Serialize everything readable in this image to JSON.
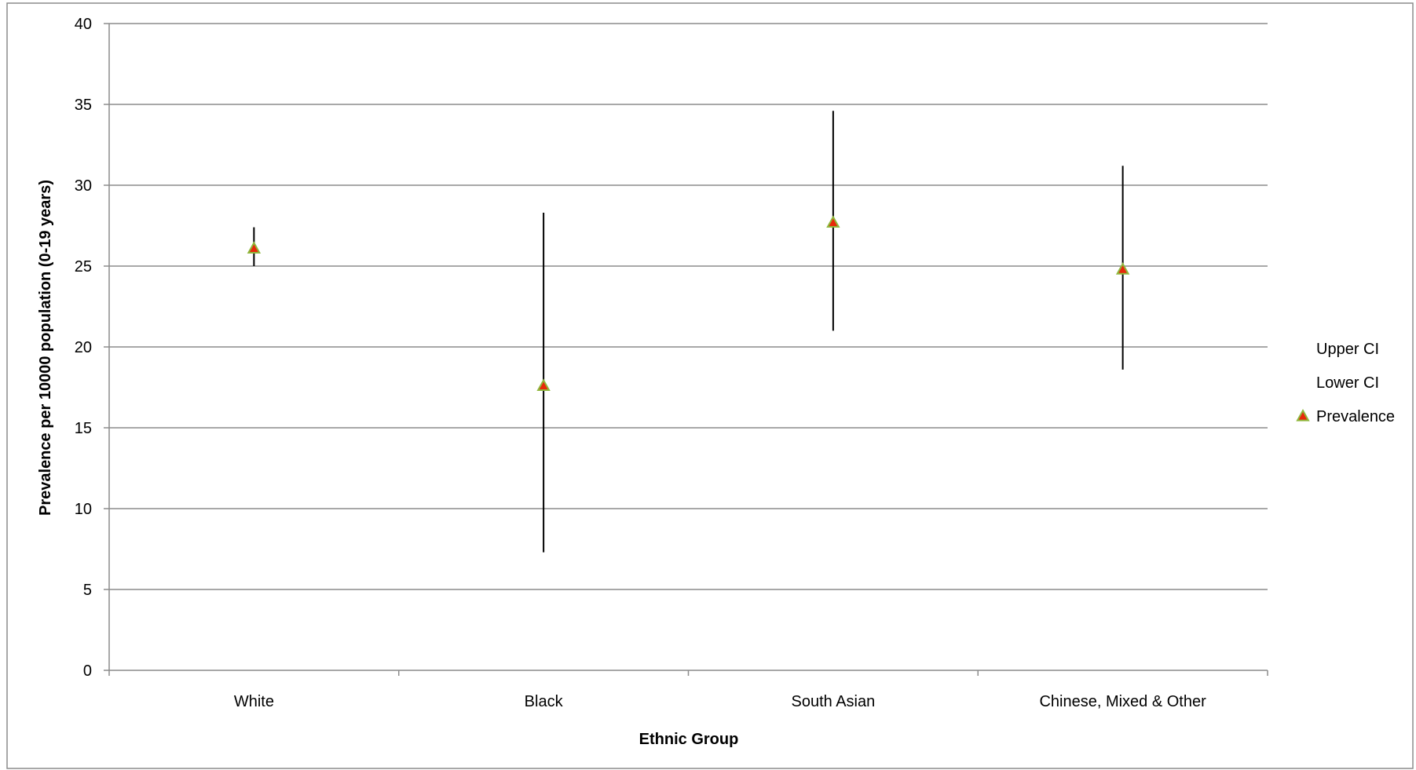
{
  "chart_data": {
    "type": "scatter",
    "title": "",
    "xlabel": "Ethnic Group",
    "ylabel": "Prevalence per 10000 population  (0-19 years)",
    "categories": [
      "White",
      "Black",
      "South Asian",
      "Chinese, Mixed & Other"
    ],
    "ylim": [
      0,
      40
    ],
    "yticks": [
      0,
      5,
      10,
      15,
      20,
      25,
      30,
      35,
      40
    ],
    "grid": true,
    "legend_position": "right",
    "series": [
      {
        "name": "Upper CI",
        "values": [
          27.4,
          28.3,
          34.6,
          31.2
        ]
      },
      {
        "name": "Lower CI",
        "values": [
          25.0,
          7.3,
          21.0,
          18.6
        ]
      },
      {
        "name": "Prevalence",
        "values": [
          26.1,
          17.6,
          27.7,
          24.8
        ]
      }
    ],
    "colors": {
      "marker_fill": "#e8290b",
      "marker_outline": "#8fb73c",
      "error_bar": "#000000",
      "gridline": "#8c8c8c",
      "axis": "#8c8c8c",
      "frame": "#8c8c8c"
    },
    "marker_shape": "triangle"
  }
}
